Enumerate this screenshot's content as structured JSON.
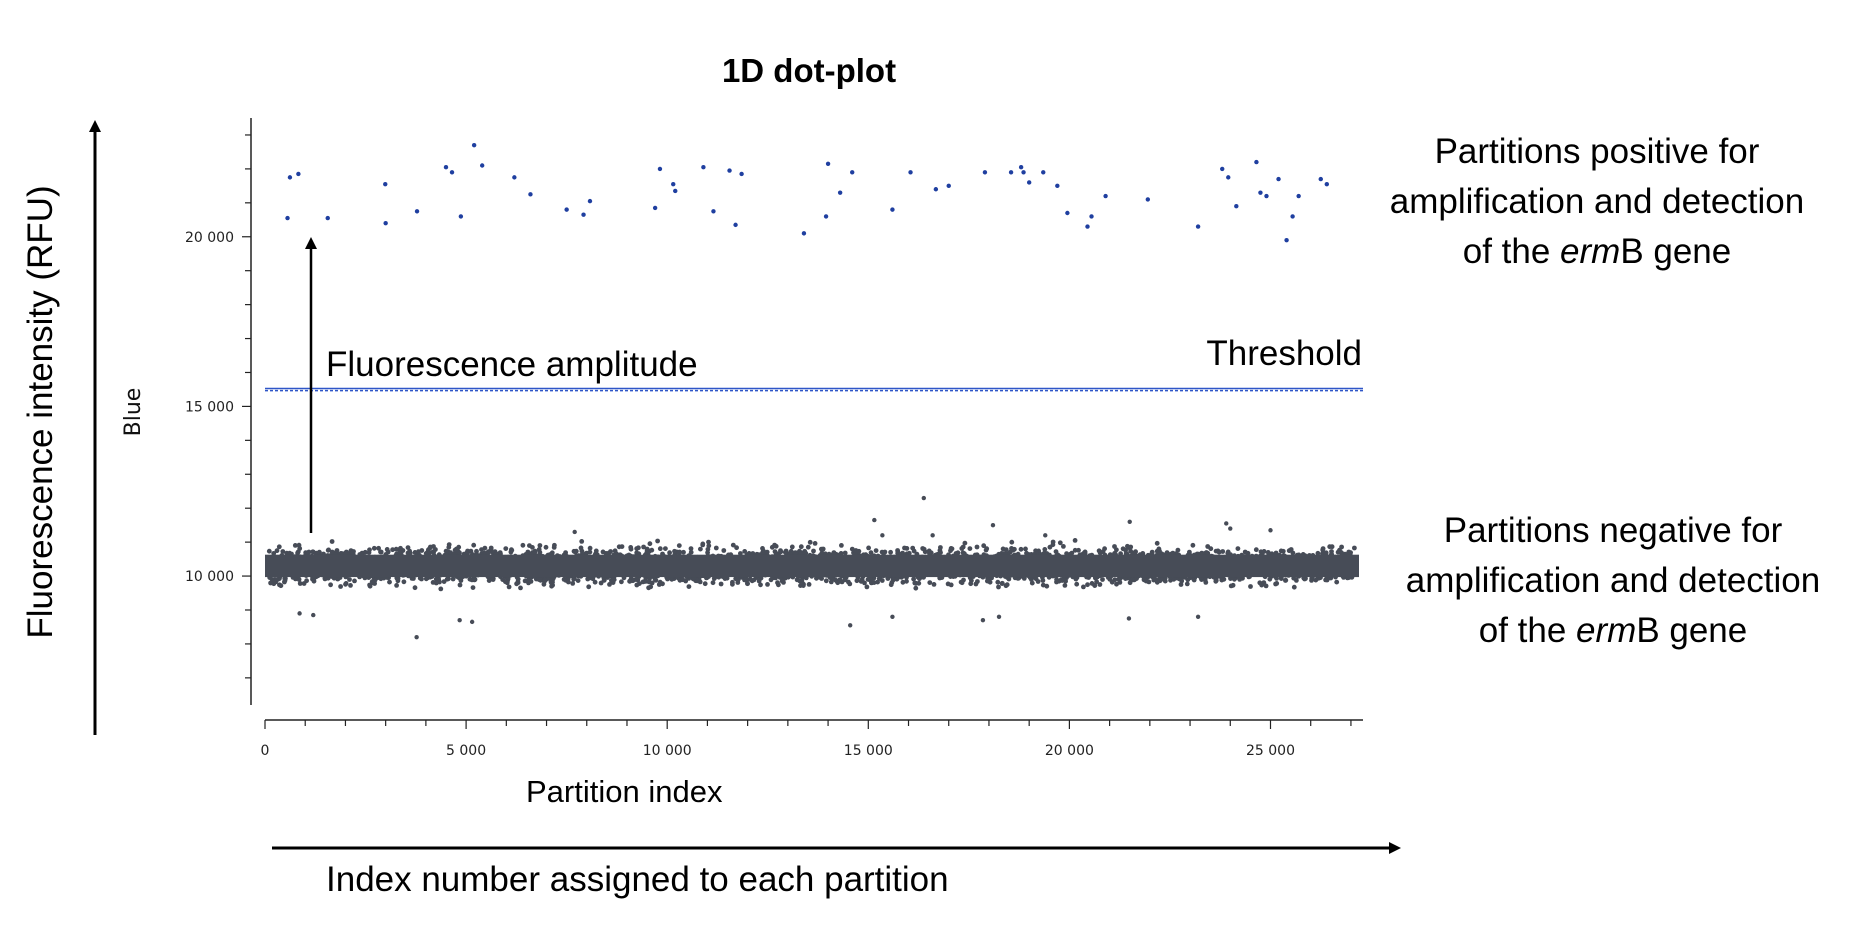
{
  "chart_data": {
    "type": "scatter",
    "title": "1D dot-plot",
    "xlabel": "Partition index",
    "ylabel": "Blue",
    "xlim": [
      0,
      27300
    ],
    "ylim": [
      6200,
      23500
    ],
    "xticks": [
      0,
      5000,
      10000,
      15000,
      20000,
      25000
    ],
    "xtick_labels": [
      "0",
      "5 000",
      "10 000",
      "15 000",
      "20 000",
      "25 000"
    ],
    "yticks": [
      10000,
      15000,
      20000
    ],
    "ytick_labels": [
      "10 000",
      "15 000",
      "20 000"
    ],
    "threshold": 15500,
    "threshold_label": "Threshold",
    "grid": false,
    "series": [
      {
        "name": "Partitions positive for amplification and detection of the ermB gene",
        "color": "#1f3fa0",
        "points": [
          [
            560,
            20550
          ],
          [
            620,
            21750
          ],
          [
            830,
            21850
          ],
          [
            1560,
            20550
          ],
          [
            2990,
            21550
          ],
          [
            3000,
            20400
          ],
          [
            3780,
            20750
          ],
          [
            4500,
            22050
          ],
          [
            4650,
            21900
          ],
          [
            4870,
            20600
          ],
          [
            5200,
            22700
          ],
          [
            5400,
            22100
          ],
          [
            6200,
            21750
          ],
          [
            6600,
            21250
          ],
          [
            7500,
            20800
          ],
          [
            7920,
            20650
          ],
          [
            8080,
            21050
          ],
          [
            9700,
            20850
          ],
          [
            9820,
            22000
          ],
          [
            10150,
            21550
          ],
          [
            10200,
            21350
          ],
          [
            10900,
            22050
          ],
          [
            11150,
            20750
          ],
          [
            11550,
            21950
          ],
          [
            11700,
            20350
          ],
          [
            11850,
            21850
          ],
          [
            13400,
            20100
          ],
          [
            14000,
            22150
          ],
          [
            13950,
            20600
          ],
          [
            14300,
            21300
          ],
          [
            14600,
            21900
          ],
          [
            15600,
            20800
          ],
          [
            16050,
            21900
          ],
          [
            16680,
            21400
          ],
          [
            17000,
            21500
          ],
          [
            17900,
            21900
          ],
          [
            18550,
            21900
          ],
          [
            18800,
            22050
          ],
          [
            18860,
            21900
          ],
          [
            19000,
            21600
          ],
          [
            19350,
            21900
          ],
          [
            19700,
            21500
          ],
          [
            19950,
            20700
          ],
          [
            20450,
            20300
          ],
          [
            20550,
            20600
          ],
          [
            20900,
            21200
          ],
          [
            21950,
            21100
          ],
          [
            23200,
            20300
          ],
          [
            23800,
            22000
          ],
          [
            23950,
            21750
          ],
          [
            24150,
            20900
          ],
          [
            24650,
            22200
          ],
          [
            24750,
            21300
          ],
          [
            24900,
            21200
          ],
          [
            25200,
            21700
          ],
          [
            25400,
            19900
          ],
          [
            25550,
            20600
          ],
          [
            25700,
            21200
          ],
          [
            26250,
            21700
          ],
          [
            26400,
            21550
          ]
        ]
      },
      {
        "name": "Partitions negative for amplification and detection of the ermB gene",
        "color": "#474c57",
        "count": 27000,
        "band_center": 10300,
        "band_halfwidth": 500,
        "outliers": [
          [
            3770,
            8200
          ],
          [
            860,
            8900
          ],
          [
            1200,
            8850
          ],
          [
            4840,
            8700
          ],
          [
            5150,
            8650
          ],
          [
            14550,
            8550
          ],
          [
            15600,
            8800
          ],
          [
            17850,
            8700
          ],
          [
            18250,
            8800
          ],
          [
            21480,
            8750
          ],
          [
            23200,
            8800
          ],
          [
            7700,
            11300
          ],
          [
            15150,
            11650
          ],
          [
            15350,
            11200
          ],
          [
            16380,
            12300
          ],
          [
            16600,
            11200
          ],
          [
            18100,
            11500
          ],
          [
            19400,
            11200
          ],
          [
            21500,
            11600
          ],
          [
            23900,
            11550
          ],
          [
            24000,
            11400
          ],
          [
            25000,
            11350
          ]
        ]
      }
    ]
  },
  "annotations": {
    "title": "1D dot-plot",
    "y_side_label": "Fluorescence intensity (RFU)",
    "x_side_label": "Index number assigned to each partition",
    "amplitude_label": "Fluorescence amplitude",
    "threshold_label": "Threshold",
    "positive_label": {
      "line1": "Partitions positive for",
      "line2": "amplification and detection",
      "line3_pre": "of the ",
      "line3_italic": "erm",
      "line3_post": "B gene"
    },
    "negative_label": {
      "line1": "Partitions negative for",
      "line2": "amplification and detection",
      "line3_pre": "of the ",
      "line3_italic": "erm",
      "line3_post": "B gene"
    }
  }
}
